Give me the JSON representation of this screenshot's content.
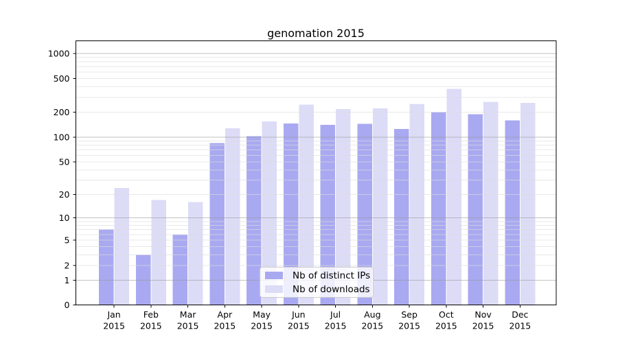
{
  "chart_data": {
    "type": "bar",
    "title": "genomation 2015",
    "categories": [
      "Jan 2015",
      "Feb 2015",
      "Mar 2015",
      "Apr 2015",
      "May 2015",
      "Jun 2015",
      "Jul 2015",
      "Aug 2015",
      "Sep 2015",
      "Oct 2015",
      "Nov 2015",
      "Dec 2015"
    ],
    "series": [
      {
        "name": "Nb of distinct IPs",
        "color": "#a9a9f1",
        "values": [
          7,
          3,
          6,
          85,
          103,
          146,
          141,
          144,
          125,
          200,
          188,
          159
        ]
      },
      {
        "name": "Nb of downloads",
        "color": "#dcdcf7",
        "values": [
          24,
          17,
          16,
          128,
          154,
          245,
          217,
          221,
          250,
          378,
          265,
          256
        ]
      }
    ],
    "yscale": "log1p",
    "yticks": [
      0,
      1,
      2,
      5,
      10,
      20,
      50,
      100,
      200,
      500,
      1000
    ],
    "ylim": [
      0,
      1340
    ],
    "grid": true,
    "legend_position": "lower-center",
    "colors": {
      "grid_major": "#9a9a9a",
      "grid_minor": "#dcdcdc",
      "axis": "#000000",
      "text": "#000000",
      "background": "#ffffff"
    }
  }
}
